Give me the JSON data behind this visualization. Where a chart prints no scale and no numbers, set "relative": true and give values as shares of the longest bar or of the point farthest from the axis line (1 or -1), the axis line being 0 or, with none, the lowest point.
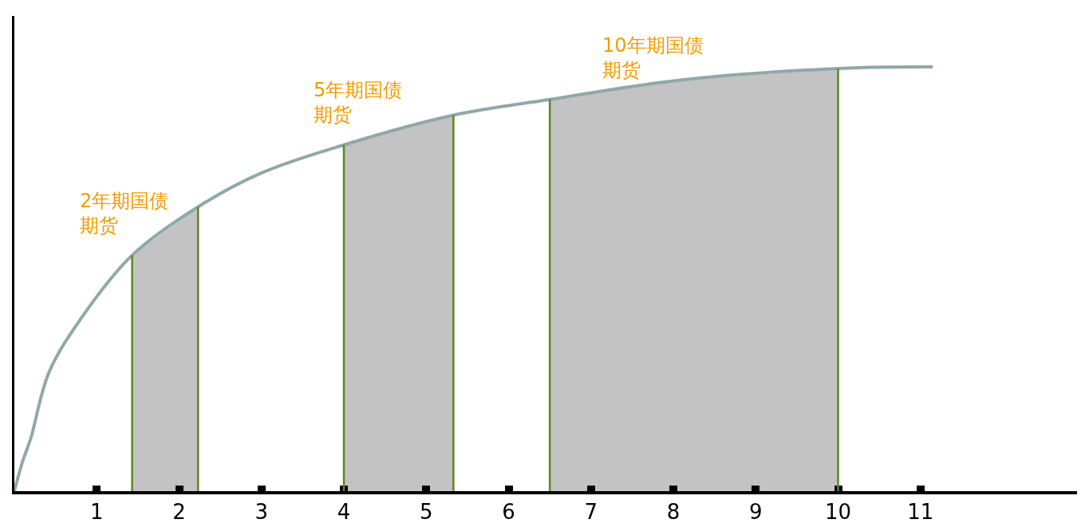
{
  "chart_data": {
    "type": "line",
    "relative": true,
    "tick_labels": "x",
    "marker": "none",
    "line_style": "solid",
    "x": [
      0,
      0.1,
      0.2,
      0.42,
      0.82,
      1.43,
      2.23,
      3,
      4,
      5.33,
      6.5,
      8,
      10,
      11.15
    ],
    "series": [
      {
        "color": "#8fa8a8",
        "values": [
          0,
          0.07,
          0.125,
          0.28,
          0.41,
          0.556,
          0.67,
          0.75,
          0.816,
          0.886,
          0.923,
          0.967,
          0.996,
          1
        ]
      }
    ],
    "xlim": [
      0,
      12.9
    ],
    "xticks": [
      1,
      2,
      3,
      4,
      5,
      6,
      7,
      8,
      9,
      10,
      11
    ],
    "bands": [
      {
        "axis": "x",
        "from": 1.43,
        "to": 2.23,
        "color": "#c3c3c3",
        "label": "2年期国债期货"
      },
      {
        "axis": "x",
        "from": 4,
        "to": 5.33,
        "color": "#c3c3c3",
        "label": "5年期国债期货"
      },
      {
        "axis": "x",
        "from": 6.5,
        "to": 10,
        "color": "#c3c3c3",
        "label": "10年期国债期货"
      }
    ],
    "ref_lines": [
      {
        "axis": "x",
        "value": 1.43,
        "color": "#5a8a1e"
      },
      {
        "axis": "x",
        "value": 2.23,
        "color": "#5a8a1e"
      },
      {
        "axis": "x",
        "value": 4,
        "color": "#5a8a1e"
      },
      {
        "axis": "x",
        "value": 5.33,
        "color": "#5a8a1e"
      },
      {
        "axis": "x",
        "value": 6.5,
        "color": "#5a8a1e"
      },
      {
        "axis": "x",
        "value": 10,
        "color": "#5a8a1e"
      }
    ]
  }
}
